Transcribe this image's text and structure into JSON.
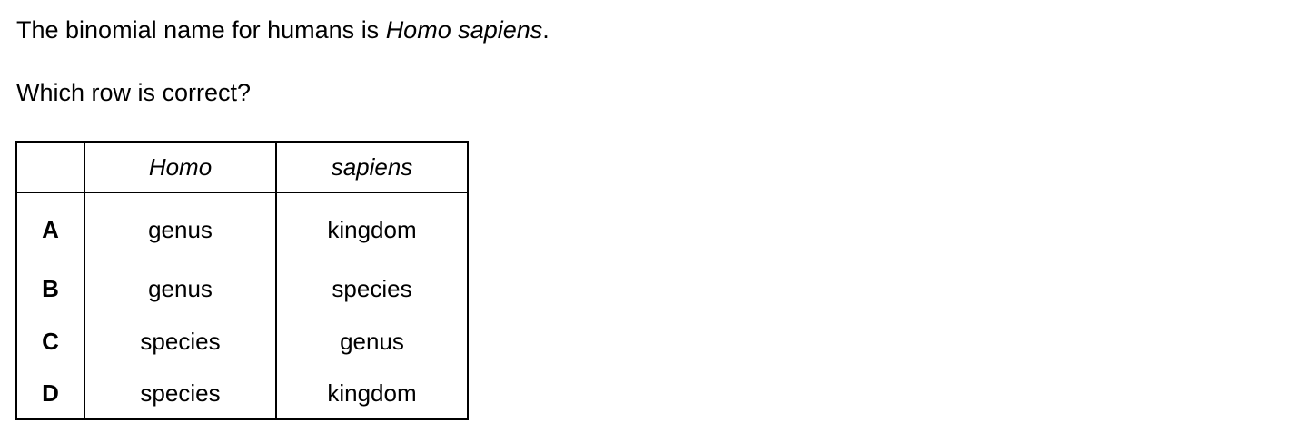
{
  "stem": {
    "prefix": "The binomial name for humans is ",
    "name": "Homo sapiens",
    "suffix": "."
  },
  "question": "Which row is correct?",
  "table": {
    "headers": [
      "",
      "Homo",
      "sapiens"
    ],
    "rows": [
      {
        "letter": "A",
        "homo": "genus",
        "sapiens": "kingdom"
      },
      {
        "letter": "B",
        "homo": "genus",
        "sapiens": "species"
      },
      {
        "letter": "C",
        "homo": "species",
        "sapiens": "genus"
      },
      {
        "letter": "D",
        "homo": "species",
        "sapiens": "kingdom"
      }
    ]
  }
}
